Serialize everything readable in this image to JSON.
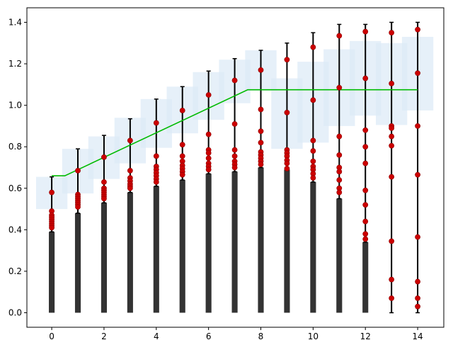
{
  "chart_data": {
    "type": "bar",
    "title": "",
    "xlabel": "",
    "ylabel": "",
    "xlim": [
      -0.95,
      15.0
    ],
    "ylim": [
      -0.07,
      1.47
    ],
    "x_ticks": [
      0,
      2,
      4,
      6,
      8,
      10,
      12,
      14
    ],
    "y_ticks": [
      0.0,
      0.2,
      0.4,
      0.6,
      0.8,
      1.0,
      1.2,
      1.4
    ],
    "x_tick_labels": [
      "0",
      "2",
      "4",
      "6",
      "8",
      "10",
      "12",
      "14"
    ],
    "y_tick_labels": [
      "0.0",
      "0.2",
      "0.4",
      "0.6",
      "0.8",
      "1.0",
      "1.2",
      "1.4"
    ],
    "grid": false,
    "colors": {
      "bars": "#333333",
      "line": "#00bb00",
      "points": "#cc0000",
      "point_edge": "#8b0000",
      "bands": "#dbe9f6",
      "errorbars": "#000000"
    },
    "bars": {
      "x": [
        0,
        1,
        2,
        3,
        4,
        5,
        6,
        7,
        8,
        9,
        10,
        11,
        12
      ],
      "values": [
        0.39,
        0.48,
        0.53,
        0.58,
        0.61,
        0.64,
        0.67,
        0.68,
        0.7,
        0.69,
        0.63,
        0.55,
        0.34
      ]
    },
    "line": {
      "x": [
        0,
        0.5,
        7.5,
        14
      ],
      "values": [
        0.66,
        0.66,
        1.075,
        1.075
      ]
    },
    "bands": [
      {
        "x": 0,
        "low": 0.5,
        "high": 0.655
      },
      {
        "x": 1,
        "low": 0.575,
        "high": 0.79
      },
      {
        "x": 2,
        "low": 0.645,
        "high": 0.85
      },
      {
        "x": 3,
        "low": 0.72,
        "high": 0.94
      },
      {
        "x": 4,
        "low": 0.795,
        "high": 1.03
      },
      {
        "x": 5,
        "low": 0.865,
        "high": 1.09
      },
      {
        "x": 6,
        "low": 0.93,
        "high": 1.16
      },
      {
        "x": 7,
        "low": 1.01,
        "high": 1.22
      },
      {
        "x": 8,
        "low": 1.07,
        "high": 1.265
      },
      {
        "x": 9,
        "low": 0.79,
        "high": 1.13
      },
      {
        "x": 10,
        "low": 0.82,
        "high": 1.21
      },
      {
        "x": 11,
        "low": 0.9,
        "high": 1.27
      },
      {
        "x": 12,
        "low": 0.95,
        "high": 1.31
      },
      {
        "x": 13,
        "low": 0.905,
        "high": 1.3
      },
      {
        "x": 14,
        "low": 0.975,
        "high": 1.33
      }
    ],
    "errorbars": [
      {
        "x": 0,
        "low": 0.39,
        "high": 0.655
      },
      {
        "x": 1,
        "low": 0.48,
        "high": 0.79
      },
      {
        "x": 2,
        "low": 0.53,
        "high": 0.855
      },
      {
        "x": 3,
        "low": 0.58,
        "high": 0.935
      },
      {
        "x": 4,
        "low": 0.61,
        "high": 1.03
      },
      {
        "x": 5,
        "low": 0.64,
        "high": 1.09
      },
      {
        "x": 6,
        "low": 0.67,
        "high": 1.165
      },
      {
        "x": 7,
        "low": 0.68,
        "high": 1.225
      },
      {
        "x": 8,
        "low": 0.7,
        "high": 1.265
      },
      {
        "x": 9,
        "low": 0.69,
        "high": 1.3
      },
      {
        "x": 10,
        "low": 0.63,
        "high": 1.35
      },
      {
        "x": 11,
        "low": 0.55,
        "high": 1.39
      },
      {
        "x": 12,
        "low": 0.34,
        "high": 1.39
      },
      {
        "x": 13,
        "low": 0.0,
        "high": 1.4
      },
      {
        "x": 14,
        "low": 0.0,
        "high": 1.4
      }
    ],
    "points": [
      {
        "x": 0,
        "values": [
          0.58,
          0.49,
          0.47,
          0.46,
          0.45,
          0.44,
          0.43,
          0.42,
          0.41
        ]
      },
      {
        "x": 1,
        "values": [
          0.685,
          0.57,
          0.56,
          0.55,
          0.54,
          0.53,
          0.52,
          0.51
        ]
      },
      {
        "x": 2,
        "values": [
          0.75,
          0.63,
          0.6,
          0.59,
          0.58,
          0.57,
          0.56,
          0.55
        ]
      },
      {
        "x": 3,
        "values": [
          0.83,
          0.685,
          0.65,
          0.635,
          0.62,
          0.61,
          0.6
        ]
      },
      {
        "x": 4,
        "values": [
          0.915,
          0.755,
          0.705,
          0.69,
          0.675,
          0.66,
          0.645,
          0.63
        ]
      },
      {
        "x": 5,
        "values": [
          0.975,
          0.81,
          0.755,
          0.73,
          0.71,
          0.695,
          0.68,
          0.665
        ]
      },
      {
        "x": 6,
        "values": [
          1.05,
          0.86,
          0.785,
          0.77,
          0.745,
          0.72,
          0.705,
          0.69
        ]
      },
      {
        "x": 7,
        "values": [
          1.12,
          0.91,
          0.785,
          0.755,
          0.73,
          0.715,
          0.7
        ]
      },
      {
        "x": 8,
        "values": [
          1.17,
          0.98,
          0.875,
          0.82,
          0.775,
          0.76,
          0.745,
          0.73,
          0.715
        ]
      },
      {
        "x": 9,
        "values": [
          1.22,
          0.965,
          0.785,
          0.77,
          0.755,
          0.735,
          0.72,
          0.695
        ]
      },
      {
        "x": 10,
        "values": [
          1.28,
          1.025,
          0.83,
          0.78,
          0.73,
          0.705,
          0.69,
          0.67,
          0.65
        ]
      },
      {
        "x": 11,
        "values": [
          1.335,
          1.085,
          0.85,
          0.76,
          0.7,
          0.68,
          0.64,
          0.6,
          0.58
        ]
      },
      {
        "x": 12,
        "values": [
          1.355,
          1.13,
          0.88,
          0.8,
          0.72,
          0.59,
          0.52,
          0.44,
          0.38,
          0.355
        ]
      },
      {
        "x": 13,
        "values": [
          1.35,
          1.105,
          0.9,
          0.89,
          0.85,
          0.805,
          0.655,
          0.345,
          0.16,
          0.07
        ]
      },
      {
        "x": 14,
        "values": [
          1.365,
          1.155,
          0.9,
          0.665,
          0.365,
          0.15,
          0.07,
          0.03
        ]
      }
    ]
  }
}
